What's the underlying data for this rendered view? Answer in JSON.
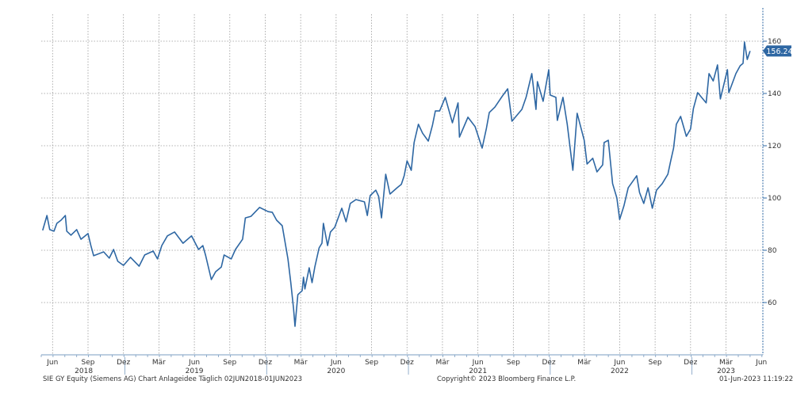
{
  "chart_data": {
    "type": "line",
    "title": "SIE GY Equity (Siemens AG) Chart Anlageidee",
    "series": [
      {
        "name": "SIE GY Equity",
        "color": "#2e67a3",
        "points": [
          [
            2018.35,
            87.6
          ],
          [
            2018.38,
            93.3
          ],
          [
            2018.4,
            87.9
          ],
          [
            2018.43,
            87.3
          ],
          [
            2018.45,
            90.3
          ],
          [
            2018.48,
            91.5
          ],
          [
            2018.51,
            93.3
          ],
          [
            2018.52,
            87.3
          ],
          [
            2018.55,
            85.8
          ],
          [
            2018.59,
            87.9
          ],
          [
            2018.62,
            84.2
          ],
          [
            2018.67,
            86.4
          ],
          [
            2018.69,
            81.8
          ],
          [
            2018.71,
            77.9
          ],
          [
            2018.78,
            79.4
          ],
          [
            2018.82,
            77.0
          ],
          [
            2018.85,
            80.3
          ],
          [
            2018.88,
            75.8
          ],
          [
            2018.92,
            74.2
          ],
          [
            2018.97,
            77.3
          ],
          [
            2019.03,
            73.9
          ],
          [
            2019.07,
            78.2
          ],
          [
            2019.13,
            79.7
          ],
          [
            2019.16,
            76.7
          ],
          [
            2019.19,
            81.8
          ],
          [
            2019.23,
            85.5
          ],
          [
            2019.28,
            87.0
          ],
          [
            2019.34,
            82.7
          ],
          [
            2019.4,
            85.5
          ],
          [
            2019.45,
            80.3
          ],
          [
            2019.48,
            81.8
          ],
          [
            2019.5,
            77.9
          ],
          [
            2019.54,
            68.8
          ],
          [
            2019.57,
            71.8
          ],
          [
            2019.61,
            73.6
          ],
          [
            2019.63,
            78.2
          ],
          [
            2019.68,
            76.7
          ],
          [
            2019.71,
            80.3
          ],
          [
            2019.76,
            84.2
          ],
          [
            2019.78,
            92.4
          ],
          [
            2019.82,
            93.0
          ],
          [
            2019.88,
            96.4
          ],
          [
            2019.94,
            94.8
          ],
          [
            2019.97,
            94.5
          ],
          [
            2020.0,
            91.5
          ],
          [
            2020.04,
            89.4
          ],
          [
            2020.08,
            76.7
          ],
          [
            2020.1,
            67.6
          ],
          [
            2020.12,
            57.6
          ],
          [
            2020.13,
            50.9
          ],
          [
            2020.15,
            63.0
          ],
          [
            2020.18,
            64.5
          ],
          [
            2020.19,
            69.7
          ],
          [
            2020.2,
            65.2
          ],
          [
            2020.23,
            73.3
          ],
          [
            2020.25,
            67.6
          ],
          [
            2020.27,
            73.6
          ],
          [
            2020.3,
            80.9
          ],
          [
            2020.32,
            82.7
          ],
          [
            2020.33,
            90.3
          ],
          [
            2020.36,
            81.8
          ],
          [
            2020.38,
            87.0
          ],
          [
            2020.41,
            88.8
          ],
          [
            2020.46,
            96.1
          ],
          [
            2020.49,
            90.9
          ],
          [
            2020.52,
            97.9
          ],
          [
            2020.56,
            99.4
          ],
          [
            2020.62,
            98.5
          ],
          [
            2020.64,
            93.3
          ],
          [
            2020.66,
            100.9
          ],
          [
            2020.7,
            103.0
          ],
          [
            2020.72,
            100.6
          ],
          [
            2020.74,
            92.4
          ],
          [
            2020.77,
            109.1
          ],
          [
            2020.8,
            101.5
          ],
          [
            2020.85,
            103.9
          ],
          [
            2020.88,
            105.2
          ],
          [
            2020.9,
            108.5
          ],
          [
            2020.92,
            114.2
          ],
          [
            2020.95,
            110.6
          ],
          [
            2020.97,
            121.2
          ],
          [
            2021.0,
            128.2
          ],
          [
            2021.03,
            124.8
          ],
          [
            2021.07,
            121.8
          ],
          [
            2021.1,
            127.9
          ],
          [
            2021.12,
            133.3
          ],
          [
            2021.15,
            133.3
          ],
          [
            2021.19,
            138.5
          ],
          [
            2021.24,
            128.8
          ],
          [
            2021.28,
            136.4
          ],
          [
            2021.29,
            123.3
          ],
          [
            2021.35,
            130.9
          ],
          [
            2021.4,
            127.3
          ],
          [
            2021.45,
            119.1
          ],
          [
            2021.48,
            126.7
          ],
          [
            2021.5,
            132.7
          ],
          [
            2021.54,
            134.8
          ],
          [
            2021.59,
            138.8
          ],
          [
            2021.63,
            141.8
          ],
          [
            2021.66,
            129.4
          ],
          [
            2021.73,
            133.9
          ],
          [
            2021.76,
            138.5
          ],
          [
            2021.8,
            147.6
          ],
          [
            2021.83,
            133.9
          ],
          [
            2021.84,
            144.5
          ],
          [
            2021.88,
            137.0
          ],
          [
            2021.92,
            149.1
          ],
          [
            2021.93,
            139.4
          ],
          [
            2021.97,
            138.5
          ],
          [
            2021.98,
            129.7
          ],
          [
            2022.02,
            138.5
          ],
          [
            2022.05,
            128.2
          ],
          [
            2022.09,
            110.6
          ],
          [
            2022.12,
            132.4
          ],
          [
            2022.17,
            122.1
          ],
          [
            2022.19,
            113.0
          ],
          [
            2022.23,
            115.2
          ],
          [
            2022.26,
            110.0
          ],
          [
            2022.3,
            112.7
          ],
          [
            2022.31,
            121.2
          ],
          [
            2022.34,
            122.1
          ],
          [
            2022.37,
            105.5
          ],
          [
            2022.4,
            100.0
          ],
          [
            2022.42,
            91.8
          ],
          [
            2022.45,
            97.0
          ],
          [
            2022.48,
            103.9
          ],
          [
            2022.54,
            108.5
          ],
          [
            2022.56,
            102.1
          ],
          [
            2022.59,
            97.9
          ],
          [
            2022.62,
            103.9
          ],
          [
            2022.65,
            96.1
          ],
          [
            2022.68,
            103.0
          ],
          [
            2022.72,
            105.5
          ],
          [
            2022.76,
            109.1
          ],
          [
            2022.78,
            114.2
          ],
          [
            2022.8,
            119.1
          ],
          [
            2022.82,
            128.2
          ],
          [
            2022.85,
            131.2
          ],
          [
            2022.89,
            123.6
          ],
          [
            2022.92,
            126.4
          ],
          [
            2022.94,
            134.2
          ],
          [
            2022.97,
            140.3
          ],
          [
            2023.03,
            136.4
          ],
          [
            2023.05,
            147.6
          ],
          [
            2023.08,
            144.8
          ],
          [
            2023.11,
            150.9
          ],
          [
            2023.13,
            137.9
          ],
          [
            2023.18,
            149.1
          ],
          [
            2023.19,
            140.3
          ],
          [
            2023.24,
            147.6
          ],
          [
            2023.27,
            150.6
          ],
          [
            2023.29,
            151.5
          ],
          [
            2023.3,
            159.7
          ],
          [
            2023.32,
            153.0
          ],
          [
            2023.34,
            156.24
          ]
        ]
      }
    ],
    "last_value_label": "156.24",
    "xlim": [
      2018.34,
      2023.43
    ],
    "ylim": [
      40,
      170.3
    ],
    "y_ticks": [
      60,
      80,
      100,
      120,
      140,
      160
    ],
    "x_month_ticks": [
      {
        "label": "Jun",
        "x": 2018.42
      },
      {
        "label": "Sep",
        "x": 2018.67
      },
      {
        "label": "Dez",
        "x": 2018.92
      },
      {
        "label": "Mär",
        "x": 2019.17
      },
      {
        "label": "Jun",
        "x": 2019.42
      },
      {
        "label": "Sep",
        "x": 2019.67
      },
      {
        "label": "Dez",
        "x": 2019.92
      },
      {
        "label": "Mär",
        "x": 2020.17
      },
      {
        "label": "Jun",
        "x": 2020.42
      },
      {
        "label": "Sep",
        "x": 2020.67
      },
      {
        "label": "Dez",
        "x": 2020.92
      },
      {
        "label": "Mär",
        "x": 2021.17
      },
      {
        "label": "Jun",
        "x": 2021.42
      },
      {
        "label": "Sep",
        "x": 2021.67
      },
      {
        "label": "Dez",
        "x": 2021.92
      },
      {
        "label": "Mär",
        "x": 2022.17
      },
      {
        "label": "Jun",
        "x": 2022.42
      },
      {
        "label": "Sep",
        "x": 2022.67
      },
      {
        "label": "Dez",
        "x": 2022.92
      },
      {
        "label": "Mär",
        "x": 2023.17
      },
      {
        "label": "Jun",
        "x": 2023.42
      }
    ],
    "x_year_labels": [
      {
        "label": "2018",
        "x": 2018.64
      },
      {
        "label": "2019",
        "x": 2019.42
      },
      {
        "label": "2020",
        "x": 2020.42
      },
      {
        "label": "2021",
        "x": 2021.42
      },
      {
        "label": "2022",
        "x": 2022.42
      },
      {
        "label": "2023",
        "x": 2023.17
      }
    ],
    "year_separators": [
      2018.93,
      2019.93,
      2020.93,
      2021.93,
      2022.93
    ],
    "grid": true,
    "legend": "none"
  },
  "footer": {
    "left": "SIE GY Equity (Siemens AG) Chart Anlageidee   Täglich 02JUN2018-01JUN2023",
    "center": "Copyright© 2023 Bloomberg Finance L.P.",
    "right": "01-Jun-2023 11:19:22"
  }
}
